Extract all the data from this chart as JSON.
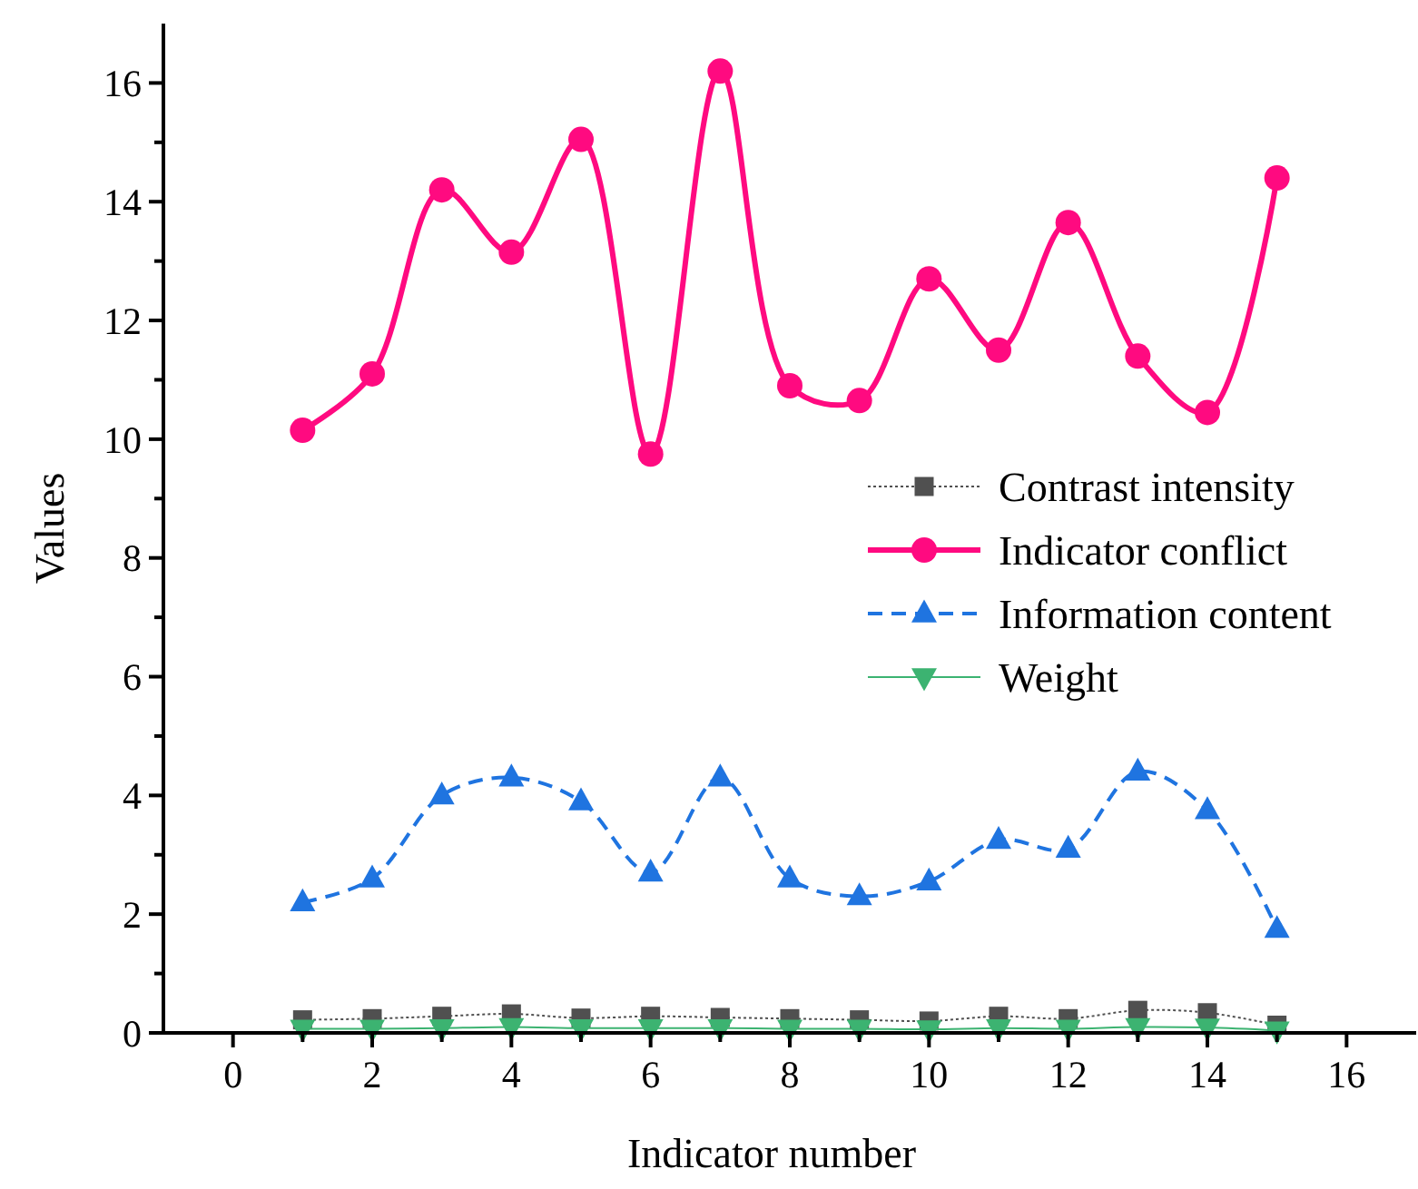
{
  "chart_data": {
    "type": "line",
    "xlabel": "Indicator number",
    "ylabel": "Values",
    "x": [
      1,
      2,
      3,
      4,
      5,
      6,
      7,
      8,
      9,
      10,
      11,
      12,
      13,
      14,
      15
    ],
    "xlim": [
      -1,
      17
    ],
    "xticks": [
      0,
      {
        "value": 1,
        "label": null
      },
      2,
      {
        "value": 3,
        "label": null
      },
      4,
      {
        "value": 5,
        "label": null
      },
      6,
      {
        "value": 7,
        "label": null
      },
      8,
      {
        "value": 9,
        "label": null
      },
      10,
      {
        "value": 11,
        "label": null
      },
      12,
      {
        "value": 13,
        "label": null
      },
      14,
      {
        "value": 15,
        "label": null
      },
      16
    ],
    "ylim": [
      0,
      17
    ],
    "yticks": [
      0,
      {
        "value": 1,
        "label": null
      },
      2,
      {
        "value": 3,
        "label": null
      },
      4,
      {
        "value": 5,
        "label": null
      },
      6,
      {
        "value": 7,
        "label": null
      },
      8,
      {
        "value": 9,
        "label": null
      },
      10,
      {
        "value": 11,
        "label": null
      },
      12,
      {
        "value": 13,
        "label": null
      },
      14,
      {
        "value": 15,
        "label": null
      },
      16
    ],
    "grid": false,
    "legend": "right",
    "series": [
      {
        "name": "Contrast intensity",
        "color": "#505050",
        "marker": "square",
        "line_style": "dotted",
        "values": [
          0.22,
          0.24,
          0.28,
          0.32,
          0.25,
          0.28,
          0.26,
          0.24,
          0.22,
          0.2,
          0.28,
          0.24,
          0.38,
          0.34,
          0.13
        ]
      },
      {
        "name": "Indicator conflict",
        "color": "#ff0a80",
        "marker": "circle",
        "line_style": "solid",
        "values": [
          10.15,
          11.1,
          14.2,
          13.15,
          15.05,
          9.75,
          16.2,
          10.9,
          10.65,
          12.7,
          11.5,
          13.65,
          11.4,
          10.45,
          14.4
        ]
      },
      {
        "name": "Information content",
        "color": "#1f74e0",
        "marker": "triangle",
        "line_style": "dashed",
        "values": [
          2.2,
          2.6,
          4.0,
          4.3,
          3.9,
          2.7,
          4.3,
          2.6,
          2.3,
          2.55,
          3.25,
          3.1,
          4.4,
          3.75,
          1.75
        ]
      },
      {
        "name": "Weight",
        "color": "#3cb371",
        "marker": "triangle-down",
        "line_style": "solid",
        "values": [
          0.07,
          0.07,
          0.08,
          0.1,
          0.08,
          0.08,
          0.08,
          0.07,
          0.07,
          0.06,
          0.08,
          0.07,
          0.1,
          0.09,
          0.04
        ]
      }
    ]
  }
}
